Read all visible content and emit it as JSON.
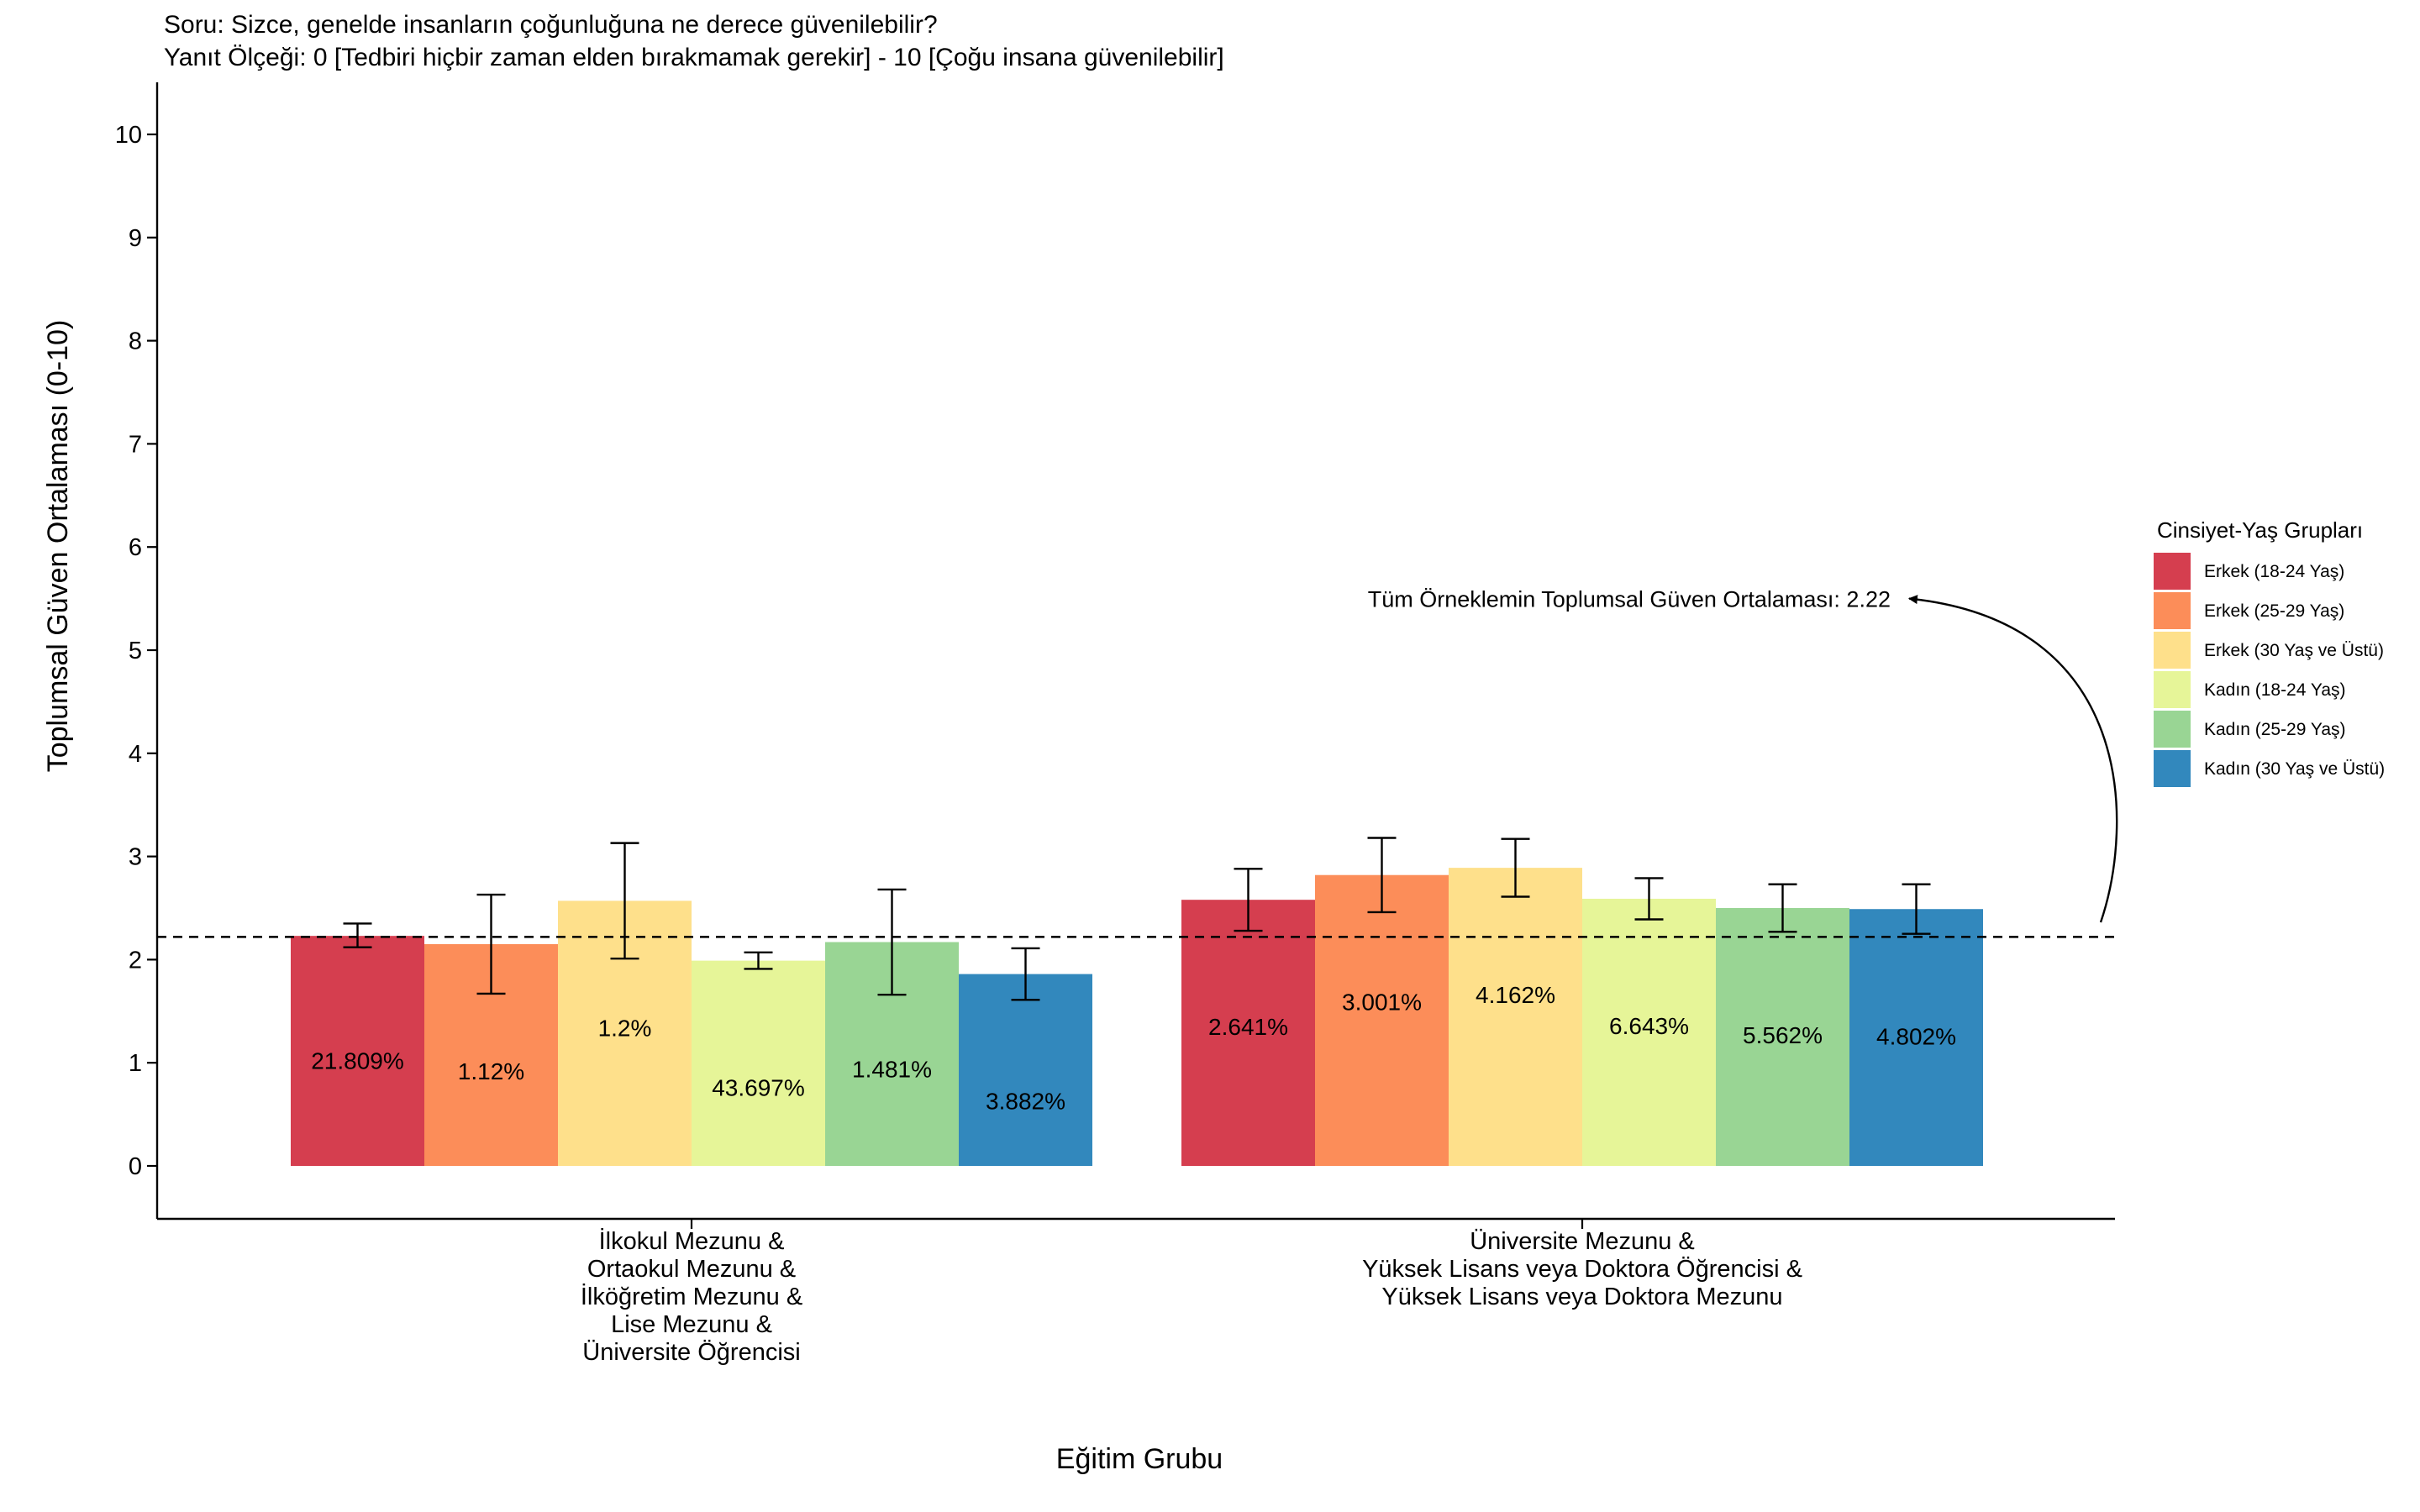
{
  "chart_data": {
    "type": "bar",
    "title": "Soru: Sizce, genelde insanların çoğunluğuna ne derece güvenilebilir?",
    "subtitle": "Yanıt Ölçeği: 0 [Tedbiri hiçbir zaman elden bırakmamak gerekir] - 10 [Çoğu insana güvenilebilir]",
    "xlabel": "Eğitim Grubu",
    "ylabel": "Toplumsal Güven Ortalaması (0-10)",
    "ylim": [
      -0.5,
      10.5
    ],
    "yticks": [
      "0",
      "1",
      "2",
      "3",
      "4",
      "5",
      "6",
      "7",
      "8",
      "9",
      "10"
    ],
    "grid": false,
    "legend_position": "right",
    "legend_title": "Cinsiyet-Yaş Grupları",
    "categories": [
      [
        "İlkokul Mezunu &",
        "Ortaokul Mezunu &",
        "İlköğretim Mezunu &",
        "Lise Mezunu &",
        "Üniversite Öğrencisi"
      ],
      [
        "Üniversite Mezunu &",
        "Yüksek Lisans veya Doktora Öğrencisi &",
        "Yüksek Lisans veya Doktora Mezunu"
      ]
    ],
    "series": [
      {
        "name": "Erkek (18-24 Yaş)",
        "color": "#D53E4F",
        "values": [
          2.23,
          2.58
        ],
        "err_low": [
          2.12,
          2.28
        ],
        "err_high": [
          2.35,
          2.88
        ],
        "labels": [
          "21.809%",
          "2.641%"
        ],
        "label_y": [
          1.02,
          1.35
        ]
      },
      {
        "name": "Erkek (25-29 Yaş)",
        "color": "#FC8D59",
        "values": [
          2.15,
          2.82
        ],
        "err_low": [
          1.67,
          2.46
        ],
        "err_high": [
          2.63,
          3.18
        ],
        "labels": [
          "1.12%",
          "3.001%"
        ],
        "label_y": [
          0.92,
          1.59
        ]
      },
      {
        "name": "Erkek (30 Yaş ve Üstü)",
        "color": "#FEE08B",
        "values": [
          2.57,
          2.89
        ],
        "err_low": [
          2.01,
          2.61
        ],
        "err_high": [
          3.13,
          3.17
        ],
        "labels": [
          "1.2%",
          "4.162%"
        ],
        "label_y": [
          1.34,
          1.66
        ]
      },
      {
        "name": "Kadın (18-24 Yaş)",
        "color": "#E6F598",
        "values": [
          1.99,
          2.59
        ],
        "err_low": [
          1.91,
          2.39
        ],
        "err_high": [
          2.07,
          2.79
        ],
        "labels": [
          "43.697%",
          "6.643%"
        ],
        "label_y": [
          0.76,
          1.36
        ]
      },
      {
        "name": "Kadın (25-29 Yaş)",
        "color": "#99D594",
        "values": [
          2.17,
          2.5
        ],
        "err_low": [
          1.66,
          2.27
        ],
        "err_high": [
          2.68,
          2.73
        ],
        "labels": [
          "1.481%",
          "5.562%"
        ],
        "label_y": [
          0.94,
          1.27
        ]
      },
      {
        "name": "Kadın (30 Yaş ve Üstü)",
        "color": "#3288BD",
        "values": [
          1.86,
          2.49
        ],
        "err_low": [
          1.61,
          2.25
        ],
        "err_high": [
          2.11,
          2.73
        ],
        "labels": [
          "3.882%",
          "4.802%"
        ],
        "label_y": [
          0.63,
          1.26
        ]
      }
    ],
    "reference_line": {
      "value": 2.22,
      "style": "dashed"
    },
    "annotation": {
      "text": "Tüm Örneklemin Toplumsal Güven Ortalaması: 2.22",
      "y": 5.5
    }
  }
}
